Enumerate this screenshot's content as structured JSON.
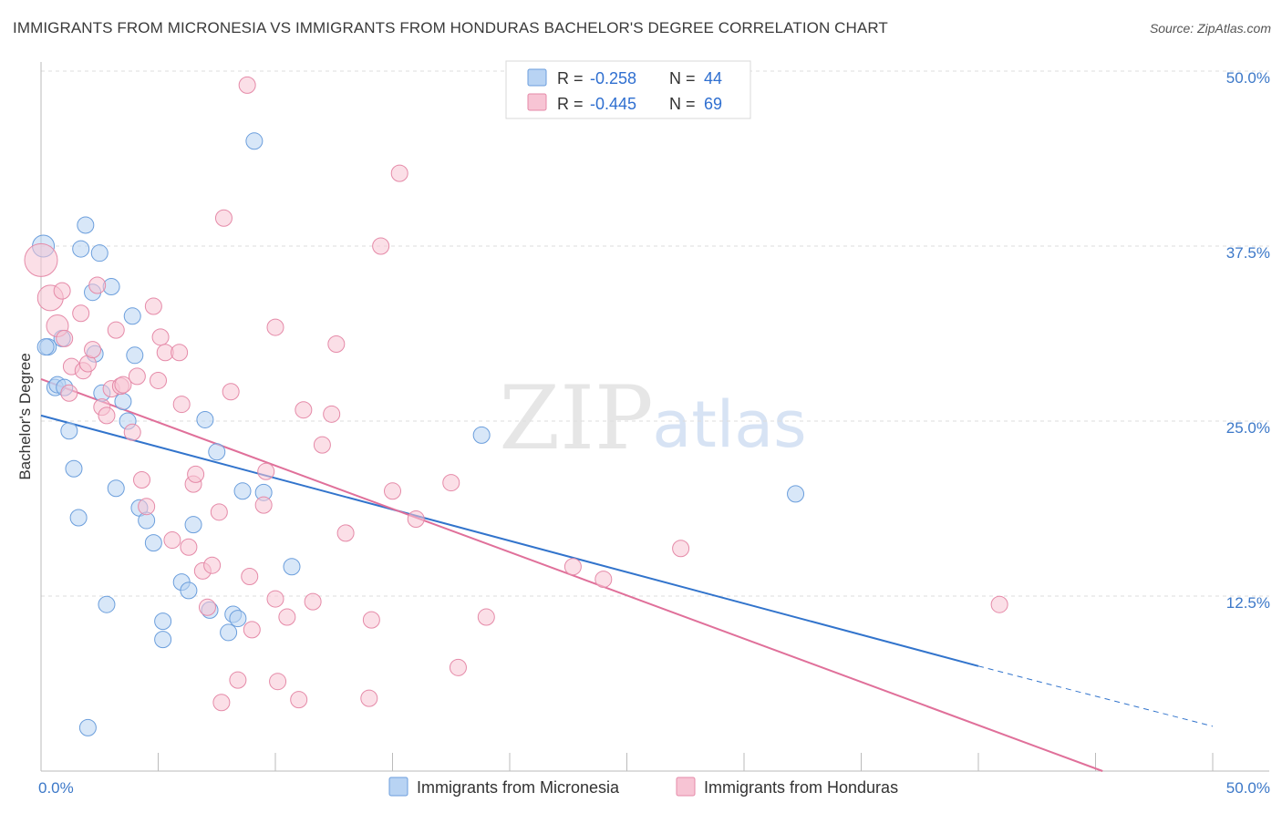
{
  "title": "IMMIGRANTS FROM MICRONESIA VS IMMIGRANTS FROM HONDURAS BACHELOR'S DEGREE CORRELATION CHART",
  "source": "Source: ZipAtlas.com",
  "watermark": {
    "zip": "ZIP",
    "atlas": "atlas"
  },
  "legend_top": [
    {
      "r_label": "R =",
      "r_value": "-0.258",
      "n_label": "N =",
      "n_value": "44"
    },
    {
      "r_label": "R =",
      "r_value": "-0.445",
      "n_label": "N =",
      "n_value": "69"
    }
  ],
  "colors": {
    "micronesia_fill": "#b8d3f3",
    "micronesia_stroke": "#6b9edc",
    "micronesia_line": "#3274cc",
    "honduras_fill": "#f7c4d4",
    "honduras_stroke": "#e58aa8",
    "honduras_line": "#e0709a",
    "tick_label": "#3c78c8",
    "grid": "#dddddd"
  },
  "chart_data": {
    "type": "scatter",
    "title": "IMMIGRANTS FROM MICRONESIA VS IMMIGRANTS FROM HONDURAS BACHELOR'S DEGREE CORRELATION CHART",
    "xlabel": "",
    "ylabel": "Bachelor's Degree",
    "xlim": [
      0,
      50
    ],
    "ylim": [
      0,
      50
    ],
    "x_tick_labels": [
      "0.0%",
      "50.0%"
    ],
    "y_ticks": [
      12.5,
      25.0,
      37.5,
      50.0
    ],
    "y_tick_labels": [
      "12.5%",
      "25.0%",
      "37.5%",
      "50.0%"
    ],
    "grid": true,
    "legend_position": "top-center",
    "series": [
      {
        "name": "Immigrants from Micronesia",
        "r": -0.258,
        "n": 44,
        "trend": {
          "x0": 0,
          "y0": 25.4,
          "x1": 40,
          "y1": 7.5,
          "dashed_to_x": 50,
          "dashed_to_y": 3.2
        },
        "points": [
          [
            0.1,
            37.5,
            12
          ],
          [
            0.3,
            30.3,
            9
          ],
          [
            0.6,
            27.4,
            9
          ],
          [
            0.7,
            27.6,
            9
          ],
          [
            0.9,
            30.9,
            9
          ],
          [
            1.2,
            24.3,
            9
          ],
          [
            1.4,
            21.6,
            9
          ],
          [
            1.6,
            18.1,
            9
          ],
          [
            1.7,
            37.3,
            9
          ],
          [
            1.9,
            39.0,
            9
          ],
          [
            2.0,
            3.1,
            9
          ],
          [
            2.2,
            34.2,
            9
          ],
          [
            2.3,
            29.8,
            9
          ],
          [
            2.5,
            37.0,
            9
          ],
          [
            2.6,
            27.0,
            9
          ],
          [
            2.8,
            11.9,
            9
          ],
          [
            3.0,
            34.6,
            9
          ],
          [
            3.2,
            20.2,
            9
          ],
          [
            3.5,
            26.4,
            9
          ],
          [
            3.7,
            25.0,
            9
          ],
          [
            3.9,
            32.5,
            9
          ],
          [
            4.0,
            29.7,
            9
          ],
          [
            4.2,
            18.8,
            9
          ],
          [
            4.5,
            17.9,
            9
          ],
          [
            4.8,
            16.3,
            9
          ],
          [
            5.2,
            10.7,
            9
          ],
          [
            5.2,
            9.4,
            9
          ],
          [
            6.0,
            13.5,
            9
          ],
          [
            6.3,
            12.9,
            9
          ],
          [
            6.5,
            17.6,
            9
          ],
          [
            7.0,
            25.1,
            9
          ],
          [
            7.2,
            11.5,
            9
          ],
          [
            7.5,
            22.8,
            9
          ],
          [
            8.0,
            9.9,
            9
          ],
          [
            8.2,
            11.2,
            9
          ],
          [
            8.4,
            10.9,
            9
          ],
          [
            8.6,
            20.0,
            9
          ],
          [
            9.1,
            45.0,
            9
          ],
          [
            9.5,
            19.9,
            9
          ],
          [
            10.7,
            14.6,
            9
          ],
          [
            18.8,
            24.0,
            9
          ],
          [
            32.2,
            19.8,
            9
          ],
          [
            0.2,
            30.3,
            9
          ],
          [
            1.0,
            27.4,
            9
          ]
        ]
      },
      {
        "name": "Immigrants from Honduras",
        "r": -0.445,
        "n": 69,
        "trend": {
          "x0": 0,
          "y0": 28.0,
          "x1": 45.3,
          "y1": 0
        },
        "points": [
          [
            0.0,
            36.5,
            18
          ],
          [
            0.4,
            33.8,
            14
          ],
          [
            0.7,
            31.8,
            12
          ],
          [
            0.9,
            34.3,
            9
          ],
          [
            1.0,
            30.9,
            9
          ],
          [
            1.2,
            27.0,
            9
          ],
          [
            1.3,
            28.9,
            9
          ],
          [
            1.7,
            32.7,
            9
          ],
          [
            1.8,
            28.6,
            9
          ],
          [
            2.0,
            29.1,
            9
          ],
          [
            2.2,
            30.1,
            9
          ],
          [
            2.4,
            34.7,
            9
          ],
          [
            2.6,
            26.0,
            9
          ],
          [
            2.8,
            25.4,
            9
          ],
          [
            3.0,
            27.3,
            9
          ],
          [
            3.2,
            31.5,
            9
          ],
          [
            3.4,
            27.5,
            9
          ],
          [
            3.5,
            27.6,
            9
          ],
          [
            3.9,
            24.2,
            9
          ],
          [
            4.1,
            28.2,
            9
          ],
          [
            4.3,
            20.8,
            9
          ],
          [
            4.5,
            18.9,
            9
          ],
          [
            4.8,
            33.2,
            9
          ],
          [
            5.0,
            27.9,
            9
          ],
          [
            5.1,
            31.0,
            9
          ],
          [
            5.3,
            29.9,
            9
          ],
          [
            5.6,
            16.5,
            9
          ],
          [
            5.9,
            29.9,
            9
          ],
          [
            6.0,
            26.2,
            9
          ],
          [
            6.3,
            16.0,
            9
          ],
          [
            6.5,
            20.5,
            9
          ],
          [
            6.6,
            21.2,
            9
          ],
          [
            6.9,
            14.3,
            9
          ],
          [
            7.1,
            11.7,
            9
          ],
          [
            7.3,
            14.7,
            9
          ],
          [
            7.6,
            18.5,
            9
          ],
          [
            7.7,
            4.9,
            9
          ],
          [
            7.8,
            39.5,
            9
          ],
          [
            8.1,
            27.1,
            9
          ],
          [
            8.4,
            6.5,
            9
          ],
          [
            8.8,
            49.0,
            9
          ],
          [
            8.9,
            13.9,
            9
          ],
          [
            9.0,
            10.1,
            9
          ],
          [
            9.5,
            19.0,
            9
          ],
          [
            9.6,
            21.4,
            9
          ],
          [
            10.0,
            31.7,
            9
          ],
          [
            10.0,
            12.3,
            9
          ],
          [
            10.1,
            6.4,
            9
          ],
          [
            10.5,
            11.0,
            9
          ],
          [
            11.0,
            5.1,
            9
          ],
          [
            11.2,
            25.8,
            9
          ],
          [
            11.6,
            12.1,
            9
          ],
          [
            12.0,
            23.3,
            9
          ],
          [
            12.4,
            25.5,
            9
          ],
          [
            12.6,
            30.5,
            9
          ],
          [
            13.0,
            17.0,
            9
          ],
          [
            14.0,
            5.2,
            9
          ],
          [
            14.1,
            10.8,
            9
          ],
          [
            14.5,
            37.5,
            9
          ],
          [
            15.0,
            20.0,
            9
          ],
          [
            15.3,
            42.7,
            9
          ],
          [
            16.0,
            18.0,
            9
          ],
          [
            17.5,
            20.6,
            9
          ],
          [
            17.8,
            7.4,
            9
          ],
          [
            19.0,
            11.0,
            9
          ],
          [
            22.7,
            14.6,
            9
          ],
          [
            24.0,
            13.7,
            9
          ],
          [
            27.3,
            15.9,
            9
          ],
          [
            40.9,
            11.9,
            9
          ]
        ]
      }
    ]
  },
  "bottom_legend": [
    {
      "label": "Immigrants from Micronesia"
    },
    {
      "label": "Immigrants from Honduras"
    }
  ]
}
